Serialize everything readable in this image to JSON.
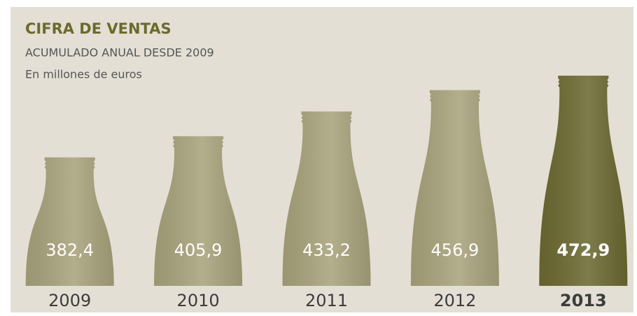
{
  "chart_data": {
    "type": "bottle-bar",
    "title": "CIFRA DE VENTAS",
    "subtitle": "ACUMULADO ANUAL DESDE 2009",
    "note": "En millones de euros",
    "categories": [
      "2009",
      "2010",
      "2011",
      "2012",
      "2013"
    ],
    "values": [
      382.4,
      405.9,
      433.2,
      456.9,
      472.9
    ],
    "value_labels": [
      "382,4",
      "405,9",
      "433,2",
      "456,9",
      "472,9"
    ],
    "colors": [
      "#a9a37c",
      "#a9a37c",
      "#a9a37c",
      "#a9a37c",
      "#6d6a32"
    ],
    "emphasis": [
      false,
      false,
      false,
      false,
      true
    ],
    "ylim": [
      240,
      490
    ]
  }
}
